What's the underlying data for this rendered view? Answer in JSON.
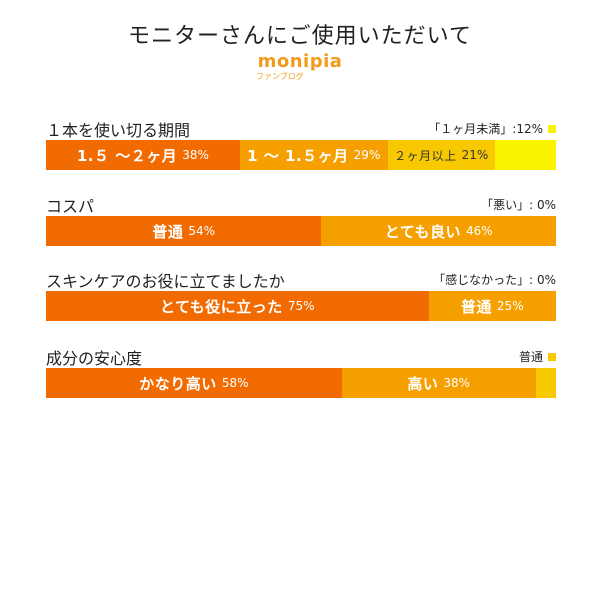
{
  "title": "モニターさんにご使用いただいて",
  "brand": {
    "logo": "monipia",
    "sub": "ファンブログ"
  },
  "colors": {
    "c1": "#f26b00",
    "c2": "#f6a000",
    "c3": "#f8c800",
    "c4": "#fbf400"
  },
  "chart_data": {
    "type": "bar",
    "stacked": true,
    "orientation": "horizontal",
    "percent": true,
    "charts": [
      {
        "question": "１本を使い切る期間",
        "note": "「１ヶ月未満」:12%",
        "note_color": "#fbf400",
        "segments": [
          {
            "label": "1.５ 〜２ヶ月",
            "value": 38,
            "pct": "38%",
            "color": "#f26b00"
          },
          {
            "label": "1 〜 1.５ヶ月",
            "value": 29,
            "pct": "29%",
            "color": "#f6a000"
          },
          {
            "label": "２ヶ月以上",
            "value": 21,
            "pct": "21%",
            "color": "#f8c800",
            "light": true
          },
          {
            "label": "",
            "value": 12,
            "pct": "",
            "color": "#fbf400"
          }
        ]
      },
      {
        "question": "コスパ",
        "note": "「悪い」: 0%",
        "note_color": "",
        "segments": [
          {
            "label": "普通",
            "value": 54,
            "pct": "54%",
            "color": "#f26b00"
          },
          {
            "label": "とても良い",
            "value": 46,
            "pct": "46%",
            "color": "#f6a000"
          }
        ]
      },
      {
        "question": "スキンケアのお役に立てましたか",
        "note": "「感じなかった」: 0%",
        "note_color": "",
        "segments": [
          {
            "label": "とても役に立った",
            "value": 75,
            "pct": "75%",
            "color": "#f26b00"
          },
          {
            "label": "普通",
            "value": 25,
            "pct": "25%",
            "color": "#f6a000"
          }
        ]
      },
      {
        "question": "成分の安心度",
        "note": "普通",
        "note_color": "#f8c800",
        "segments": [
          {
            "label": "かなり高い",
            "value": 58,
            "pct": "58%",
            "color": "#f26b00"
          },
          {
            "label": "高い",
            "value": 38,
            "pct": "38%",
            "color": "#f6a000"
          },
          {
            "label": "",
            "value": 4,
            "pct": "",
            "color": "#f8c800"
          }
        ]
      }
    ]
  }
}
